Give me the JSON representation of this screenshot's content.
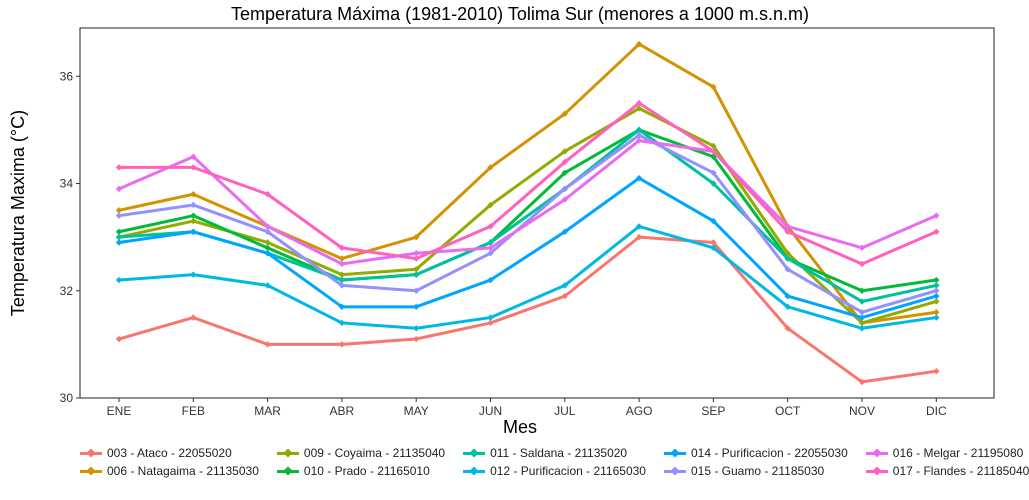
{
  "chart_data": {
    "type": "line",
    "title": "Temperatura Máxima (1981-2010) Tolima Sur (menores a 1000 m.s.n.m)",
    "xlabel": "Mes",
    "ylabel": "Temperatura Maxima (°C)",
    "ylim": [
      30,
      36.9
    ],
    "yticks": [
      30,
      32,
      34,
      36
    ],
    "grid": false,
    "legend_position": "bottom",
    "categories": [
      "ENE",
      "FEB",
      "MAR",
      "ABR",
      "MAY",
      "JUN",
      "JUL",
      "AGO",
      "SEP",
      "OCT",
      "NOV",
      "DIC"
    ],
    "series": [
      {
        "name": "003 - Ataco - 22055020",
        "color": "#F8766D",
        "values": [
          31.1,
          31.5,
          31.0,
          31.0,
          31.1,
          31.4,
          31.9,
          33.0,
          32.9,
          31.3,
          30.3,
          30.5
        ]
      },
      {
        "name": "006 - Natagaima - 21135030",
        "color": "#D39200",
        "values": [
          33.5,
          33.8,
          33.2,
          32.6,
          33.0,
          34.3,
          35.3,
          36.6,
          35.8,
          33.2,
          31.4,
          31.6
        ]
      },
      {
        "name": "009 - Coyaima - 21135040",
        "color": "#93AA00",
        "values": [
          33.0,
          33.3,
          32.9,
          32.3,
          32.4,
          33.6,
          34.6,
          35.4,
          34.7,
          32.7,
          31.4,
          31.8
        ]
      },
      {
        "name": "010 - Prado - 21165010",
        "color": "#00BA38",
        "values": [
          33.1,
          33.4,
          32.8,
          32.2,
          32.3,
          32.9,
          34.2,
          35.0,
          34.5,
          32.6,
          32.0,
          32.2
        ]
      },
      {
        "name": "011 - Saldana - 21135020",
        "color": "#00C19F",
        "values": [
          33.0,
          33.1,
          32.7,
          32.2,
          32.3,
          32.9,
          33.9,
          35.0,
          34.0,
          32.6,
          31.8,
          32.1
        ]
      },
      {
        "name": "012 - Purificacion - 21165030",
        "color": "#00B9E3",
        "values": [
          32.2,
          32.3,
          32.1,
          31.4,
          31.3,
          31.5,
          32.1,
          33.2,
          32.8,
          31.7,
          31.3,
          31.5
        ]
      },
      {
        "name": "014 - Purificacion - 22055030",
        "color": "#00A5FF",
        "values": [
          32.9,
          33.1,
          32.7,
          31.7,
          31.7,
          32.2,
          33.1,
          34.1,
          33.3,
          31.9,
          31.5,
          31.9
        ]
      },
      {
        "name": "015 - Guamo - 21185030",
        "color": "#9590FF",
        "values": [
          33.4,
          33.6,
          33.1,
          32.1,
          32.0,
          32.7,
          33.9,
          34.9,
          34.2,
          32.4,
          31.6,
          32.0
        ]
      },
      {
        "name": "016 - Melgar - 21195080",
        "color": "#E76BF3",
        "values": [
          33.9,
          34.5,
          33.2,
          32.5,
          32.7,
          32.8,
          33.7,
          34.8,
          34.6,
          33.2,
          32.8,
          33.4
        ]
      },
      {
        "name": "017 - Flandes - 21185040",
        "color": "#FF62BC",
        "values": [
          34.3,
          34.3,
          33.8,
          32.8,
          32.6,
          33.2,
          34.4,
          35.5,
          34.6,
          33.1,
          32.5,
          33.1
        ]
      }
    ]
  }
}
